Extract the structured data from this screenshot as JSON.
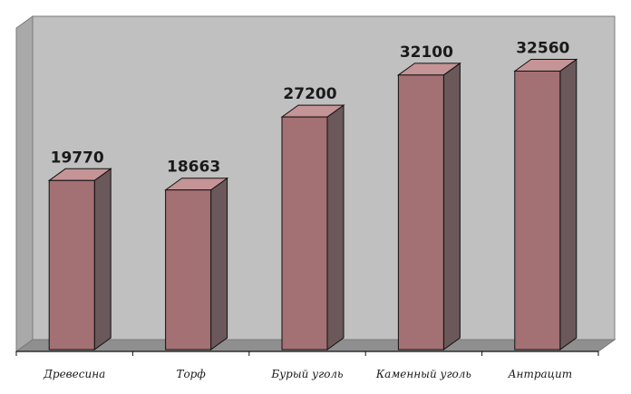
{
  "colors": {
    "background": "#ffffff",
    "plot_back_wall": "#c0c0c0",
    "plot_side_wall": "#a9a9a9",
    "plot_floor": "#8f8f8f",
    "bar_front": "#a37073",
    "bar_top": "#c59496",
    "bar_side": "#6a585a",
    "outline": "#111111"
  },
  "chart_data": {
    "type": "bar",
    "style": "3d-column",
    "categories": [
      "Древесина",
      "Торф",
      "Бурый уголь",
      "Каменный уголь",
      "Антрацит"
    ],
    "values": [
      19770,
      18663,
      27200,
      32100,
      32560
    ],
    "value_labels": [
      "19770",
      "18663",
      "27200",
      "32100",
      "32560"
    ],
    "title": "",
    "xlabel": "",
    "ylabel": "",
    "ylim": [
      0,
      36000
    ],
    "grid": false,
    "legend": "none"
  }
}
